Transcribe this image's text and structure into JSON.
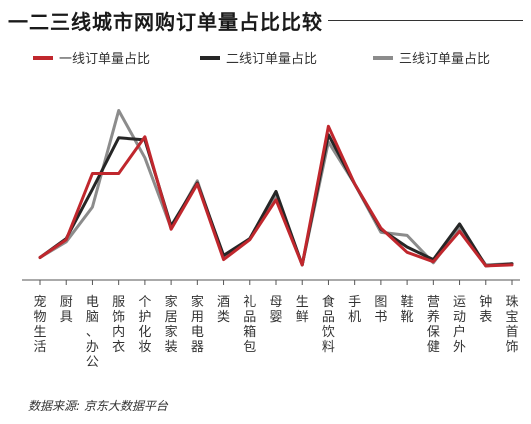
{
  "title": "一二三线城市网购订单量占比比较",
  "source": "数据来源: 京东大数据平台",
  "chart_data": {
    "type": "line",
    "title": "一二三线城市网购订单量占比比较",
    "categories": [
      "宠物生活",
      "厨具",
      "电脑、办公",
      "服饰内衣",
      "个护化妆",
      "家居家装",
      "家用电器",
      "酒类",
      "礼品箱包",
      "母婴",
      "生鲜",
      "食品饮料",
      "手机",
      "图书",
      "鞋靴",
      "营养保健",
      "运动户外",
      "钟表",
      "珠宝首饰"
    ],
    "y_axis": "none",
    "grid": false,
    "legend_position": "top",
    "series": [
      {
        "name": "一线订单量占比",
        "color": "#c0272d",
        "values": [
          1.0,
          2.7,
          9.0,
          9.0,
          12.5,
          3.7,
          8.0,
          0.8,
          2.7,
          6.5,
          0.3,
          13.5,
          8.0,
          3.8,
          1.5,
          0.6,
          3.5,
          0.2,
          0.3
        ]
      },
      {
        "name": "二线订单量占比",
        "color": "#262626",
        "values": [
          1.0,
          2.8,
          7.5,
          12.4,
          12.2,
          4.0,
          8.1,
          1.2,
          2.8,
          7.3,
          0.3,
          12.7,
          8.0,
          3.7,
          2.0,
          0.8,
          4.2,
          0.2,
          0.4
        ]
      },
      {
        "name": "三线订单量占比",
        "color": "#8c8c8c",
        "values": [
          1.0,
          2.5,
          5.8,
          15.0,
          10.5,
          3.8,
          8.3,
          1.0,
          2.8,
          7.0,
          0.3,
          12.0,
          8.0,
          3.4,
          3.1,
          0.5,
          3.8,
          0.3,
          0.4
        ]
      }
    ]
  }
}
